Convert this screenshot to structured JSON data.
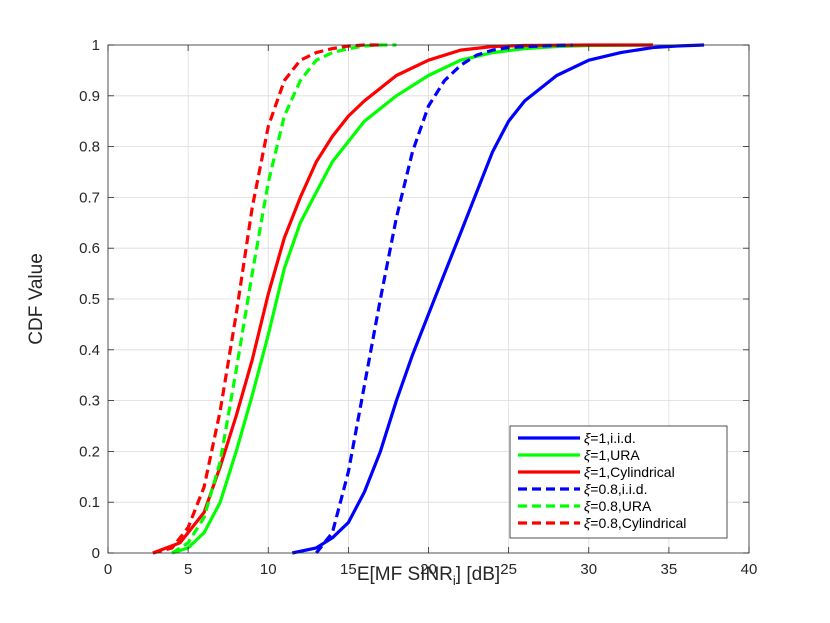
{
  "chart_data": {
    "type": "line",
    "xlabel": "E[MF SINR",
    "xlabel_sub": "i",
    "xlabel_suffix": "] [dB]",
    "ylabel": "CDF Value",
    "xlim": [
      0,
      40
    ],
    "ylim": [
      0,
      1
    ],
    "xticks": [
      "0",
      "5",
      "10",
      "15",
      "20",
      "25",
      "30",
      "35",
      "40"
    ],
    "yticks": [
      "0",
      "0.1",
      "0.2",
      "0.3",
      "0.4",
      "0.5",
      "0.6",
      "0.7",
      "0.8",
      "0.9",
      "1"
    ],
    "grid": true,
    "legend_position": "bottom-right",
    "series": [
      {
        "name": "ξ=1,i.i.d.",
        "greek": "ξ",
        "rest": "=1,i.i.d.",
        "color": "#0000ff",
        "dash": "solid",
        "x": [
          11.5,
          13.0,
          14.0,
          15.0,
          16.0,
          17.0,
          18.0,
          19.0,
          20.0,
          21.0,
          22.0,
          23.0,
          24.0,
          25.0,
          26.0,
          28.0,
          30.0,
          32.0,
          34.0,
          35.5,
          37.2
        ],
        "y": [
          0.0,
          0.01,
          0.03,
          0.06,
          0.12,
          0.2,
          0.3,
          0.39,
          0.47,
          0.55,
          0.63,
          0.71,
          0.79,
          0.85,
          0.89,
          0.94,
          0.97,
          0.985,
          0.995,
          0.998,
          1.0
        ]
      },
      {
        "name": "ξ=1,URA",
        "greek": "ξ",
        "rest": "=1,URA",
        "color": "#00ff00",
        "dash": "solid",
        "x": [
          4.0,
          5.0,
          6.0,
          7.0,
          8.0,
          9.0,
          10.0,
          11.0,
          12.0,
          13.0,
          14.0,
          15.0,
          16.0,
          18.0,
          20.0,
          22.0,
          24.0,
          26.0,
          28.0,
          30.0,
          34.0
        ],
        "y": [
          0.0,
          0.01,
          0.04,
          0.1,
          0.2,
          0.31,
          0.43,
          0.56,
          0.65,
          0.71,
          0.77,
          0.81,
          0.85,
          0.9,
          0.94,
          0.97,
          0.985,
          0.993,
          0.997,
          0.999,
          1.0
        ]
      },
      {
        "name": "ξ=1,Cylindrical",
        "greek": "ξ",
        "rest": "=1,Cylindrical",
        "color": "#ff0000",
        "dash": "solid",
        "x": [
          2.8,
          4.5,
          6.0,
          7.0,
          8.0,
          9.0,
          10.0,
          11.0,
          12.0,
          13.0,
          14.0,
          15.0,
          16.0,
          18.0,
          20.0,
          22.0,
          24.0,
          26.0,
          30.0,
          34.0
        ],
        "y": [
          0.0,
          0.02,
          0.08,
          0.17,
          0.27,
          0.38,
          0.51,
          0.62,
          0.7,
          0.77,
          0.82,
          0.86,
          0.89,
          0.94,
          0.97,
          0.99,
          0.997,
          0.999,
          1.0,
          1.0
        ]
      },
      {
        "name": "ξ=0.8,i.i.d.",
        "greek": "ξ",
        "rest": "=0.8,i.i.d.",
        "color": "#0000ff",
        "dash": "dashed",
        "x": [
          13.0,
          14.0,
          15.0,
          16.0,
          17.0,
          18.0,
          19.0,
          20.0,
          21.0,
          22.0,
          23.0,
          24.0,
          25.0,
          27.0,
          29.0
        ],
        "y": [
          0.0,
          0.04,
          0.16,
          0.33,
          0.5,
          0.66,
          0.79,
          0.88,
          0.93,
          0.96,
          0.98,
          0.99,
          0.995,
          0.998,
          1.0
        ]
      },
      {
        "name": "ξ=0.8,URA",
        "greek": "ξ",
        "rest": "=0.8,URA",
        "color": "#00ff00",
        "dash": "dashed",
        "x": [
          4.0,
          5.0,
          6.0,
          7.0,
          8.0,
          9.0,
          10.0,
          11.0,
          12.0,
          13.0,
          14.0,
          15.0,
          16.0,
          17.0,
          18.0
        ],
        "y": [
          0.0,
          0.02,
          0.07,
          0.18,
          0.36,
          0.55,
          0.73,
          0.86,
          0.93,
          0.97,
          0.985,
          0.993,
          0.998,
          1.0,
          1.0
        ]
      },
      {
        "name": "ξ=0.8,Cylindrical",
        "greek": "ξ",
        "rest": "=0.8,Cylindrical",
        "color": "#ff0000",
        "dash": "dashed",
        "x": [
          2.8,
          4.0,
          5.0,
          6.0,
          7.0,
          8.0,
          9.0,
          10.0,
          11.0,
          12.0,
          13.0,
          14.0,
          15.0,
          16.0,
          17.0
        ],
        "y": [
          0.0,
          0.01,
          0.05,
          0.13,
          0.28,
          0.47,
          0.68,
          0.84,
          0.93,
          0.97,
          0.985,
          0.993,
          0.998,
          1.0,
          1.0
        ]
      }
    ]
  }
}
